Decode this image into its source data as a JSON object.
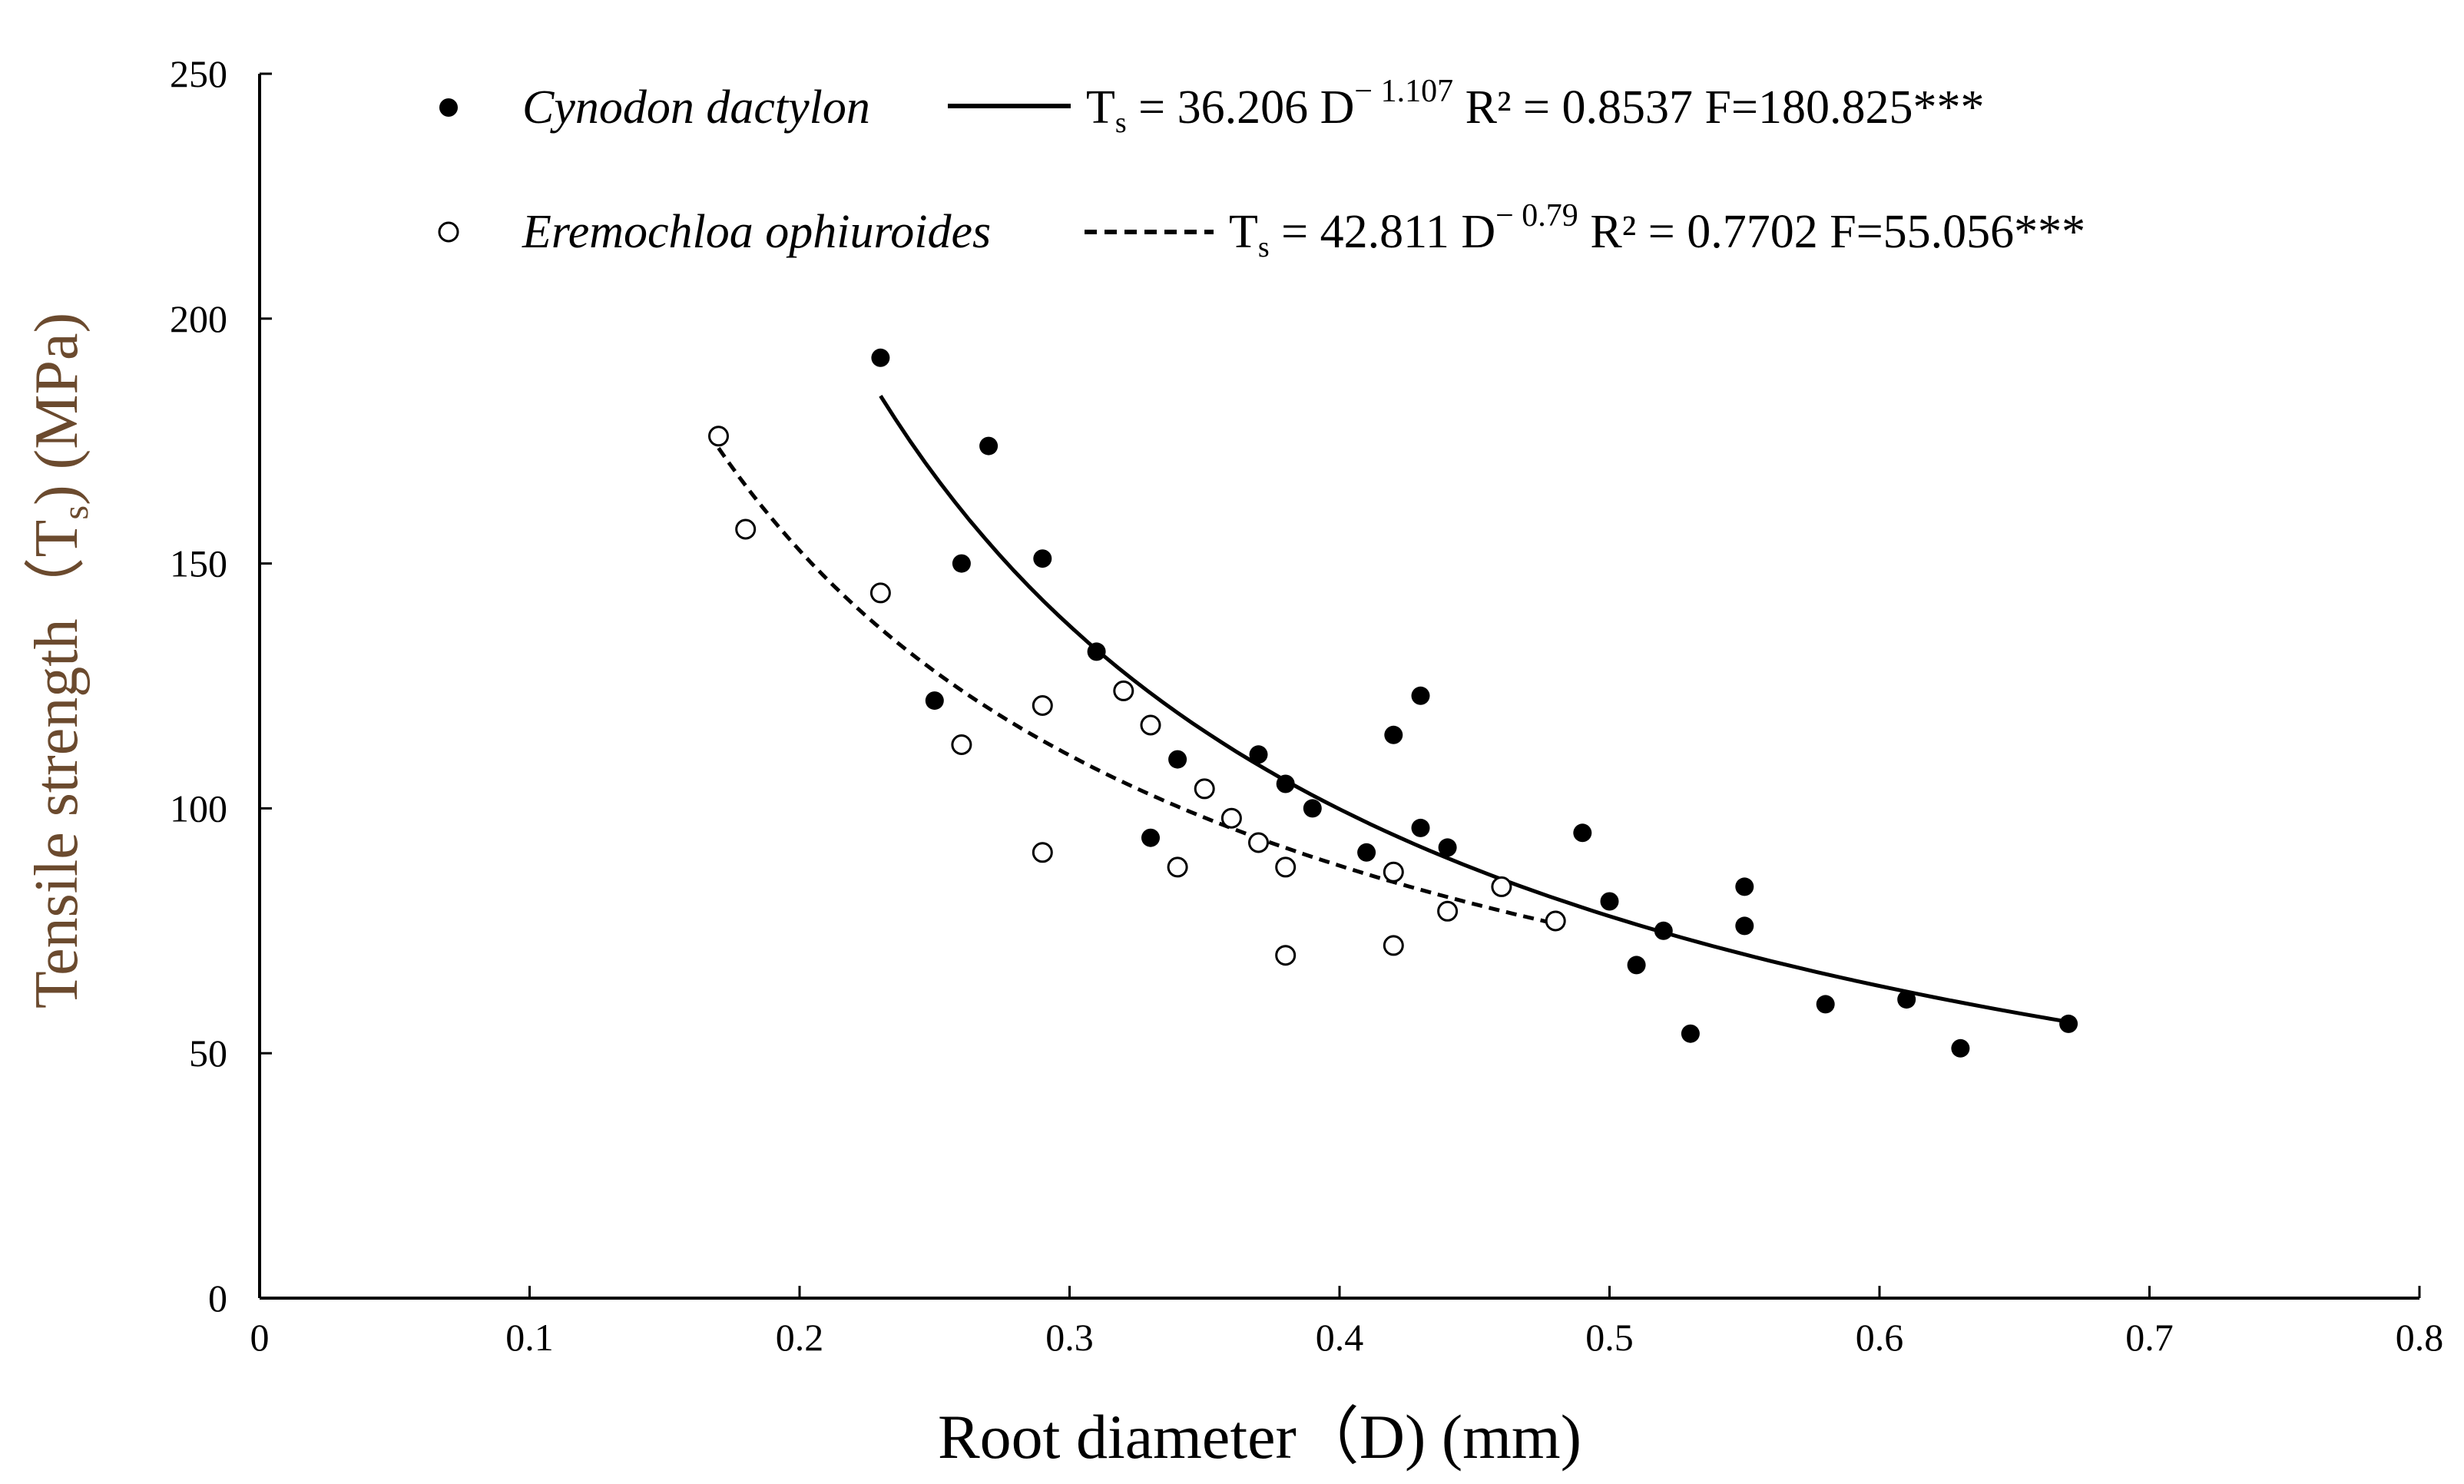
{
  "chart_data": {
    "type": "scatter",
    "xlabel": "Root diameter（D) (mm)",
    "ylabel_parts": [
      "Tensile strength（T",
      "s",
      ") (MPa)"
    ],
    "xlim": [
      0,
      0.8
    ],
    "ylim": [
      0,
      250
    ],
    "xticks": [
      0,
      0.1,
      0.2,
      0.3,
      0.4,
      0.5,
      0.6,
      0.7,
      0.8
    ],
    "xtick_labels": [
      "0",
      "0.1",
      "0.2",
      "0.3",
      "0.4",
      "0.5",
      "0.6",
      "0.7",
      "0.8"
    ],
    "yticks": [
      0,
      50,
      100,
      150,
      200,
      250
    ],
    "ytick_labels": [
      "0",
      "50",
      "100",
      "150",
      "200",
      "250"
    ],
    "series": [
      {
        "name": "Cynodon dactylon",
        "marker": "filled-circle",
        "line_style": "solid",
        "fit": {
          "a": 36.206,
          "b": -1.107,
          "x_range": [
            0.23,
            0.67
          ]
        },
        "equation": {
          "lhs": "T",
          "lhs_sub": "s",
          "coef": " = 36.206 D",
          "exp": "− 1.107",
          "stats": " R² = 0.8537 F=180.825***"
        },
        "x": [
          0.23,
          0.25,
          0.26,
          0.27,
          0.29,
          0.31,
          0.33,
          0.34,
          0.37,
          0.38,
          0.39,
          0.41,
          0.42,
          0.43,
          0.43,
          0.44,
          0.49,
          0.5,
          0.51,
          0.52,
          0.53,
          0.55,
          0.55,
          0.58,
          0.61,
          0.63,
          0.67
        ],
        "y": [
          192,
          122,
          150,
          174,
          151,
          132,
          94,
          110,
          111,
          105,
          100,
          91,
          115,
          123,
          96,
          92,
          95,
          81,
          68,
          75,
          54,
          84,
          76,
          60,
          61,
          51,
          56
        ]
      },
      {
        "name": "Eremochloa ophiuroides",
        "marker": "open-circle",
        "line_style": "dashed",
        "fit": {
          "a": 42.811,
          "b": -0.79,
          "x_range": [
            0.17,
            0.48
          ]
        },
        "equation": {
          "lhs": "T",
          "lhs_sub": "s",
          "coef": " = 42.811 D",
          "exp": "− 0.79",
          "stats": " R² = 0.7702 F=55.056***"
        },
        "x": [
          0.17,
          0.18,
          0.23,
          0.26,
          0.29,
          0.29,
          0.32,
          0.33,
          0.34,
          0.35,
          0.36,
          0.37,
          0.38,
          0.38,
          0.42,
          0.42,
          0.44,
          0.46,
          0.48
        ],
        "y": [
          176,
          157,
          144,
          113,
          121,
          91,
          124,
          117,
          88,
          104,
          98,
          93,
          88,
          70,
          87,
          72,
          79,
          84,
          77
        ]
      }
    ],
    "colors": {
      "axis": "#000000",
      "ylabel": "#6b4a2e",
      "marker": "#000000"
    }
  }
}
